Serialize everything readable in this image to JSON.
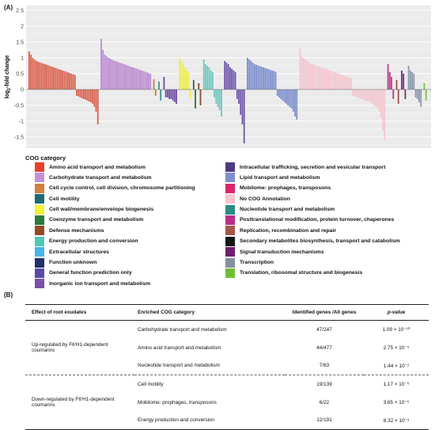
{
  "panel_a_label": "(A)",
  "panel_b_label": "(B)",
  "chart_data": {
    "type": "bar",
    "ylabel": "log2-fold change",
    "ylim": [
      -1.85,
      2.65
    ],
    "yticks": [
      -1.5,
      -1,
      -0.5,
      0,
      0.5,
      1,
      1.5,
      2,
      2.5
    ],
    "grid": true,
    "categories": [
      {
        "name": "Amino acid transport and metabolism",
        "color": "#d95f4b",
        "up": [
          1.2,
          1.1,
          1.0,
          0.95,
          0.9,
          0.88,
          0.86,
          0.84,
          0.82,
          0.8,
          0.78,
          0.76,
          0.74,
          0.72,
          0.7,
          0.68,
          0.66,
          0.64,
          0.62,
          0.6,
          0.58,
          0.56,
          0.54,
          0.52,
          0.5,
          0.48,
          0.46
        ],
        "down": [
          -0.2,
          -0.22,
          -0.25,
          -0.28,
          -0.3,
          -0.32,
          -0.35,
          -0.38,
          -0.4,
          -0.45,
          -0.55,
          -0.7,
          -1.1
        ]
      },
      {
        "name": "Carbohydrate transport and metabolism",
        "color": "#b98ad0",
        "up": [
          1.6,
          1.25,
          1.1,
          1.05,
          1.0,
          0.98,
          0.95,
          0.92,
          0.9,
          0.88,
          0.86,
          0.84,
          0.82,
          0.8,
          0.78,
          0.76,
          0.74,
          0.72,
          0.7,
          0.68,
          0.66,
          0.64,
          0.62,
          0.6,
          0.58,
          0.56,
          0.54,
          0.52,
          0.5
        ],
        "down": []
      },
      {
        "name": "Cell cycle control, cell division, chromosome partitioning",
        "color": "#c77a3a",
        "up": [
          0.32
        ],
        "down": [
          -0.2
        ]
      },
      {
        "name": "Nucleotide transport and metabolism",
        "color": "#3a8f8f",
        "up": [
          0.25
        ],
        "down": [
          -0.35
        ]
      },
      {
        "name": "Inorganic ion transport and metabolism",
        "color": "#6a4ca0",
        "up": [
          0.4
        ],
        "down": [
          -0.25,
          -0.25,
          -0.3,
          -0.3,
          -0.35,
          -0.4,
          -0.45
        ]
      },
      {
        "name": "Cell wall/membrane/envelope biogenesis",
        "color": "#eeee44",
        "up": [
          1.0,
          0.9,
          0.8,
          0.7,
          0.62,
          0.55
        ],
        "down": [
          -0.3
        ]
      },
      {
        "name": "Coenzyme transport and metabolism",
        "color": "#2f6a3a",
        "up": [
          0.3
        ],
        "down": [
          -0.6
        ]
      },
      {
        "name": "Defense mechanisms",
        "color": "#8b4a2b",
        "up": [
          0.2
        ],
        "down": [
          -0.5
        ]
      },
      {
        "name": "Energy production and conversion",
        "color": "#6fc7be",
        "up": [
          0.95,
          0.8,
          0.75,
          0.7,
          0.6,
          0.55
        ],
        "down": [
          -0.25,
          -0.45,
          -0.55,
          -0.65,
          -0.85
        ]
      },
      {
        "name": "General function prediction only",
        "color": "#6d54a8",
        "up": [
          0.9,
          0.85,
          0.8,
          0.7,
          0.65,
          0.6,
          0.55
        ],
        "down": [
          -0.3,
          -0.45,
          -0.8,
          -1.1,
          -1.7
        ]
      },
      {
        "name": "Lipid transport and metabolism",
        "color": "#7a8ccc",
        "up": [
          1.0,
          0.95,
          0.9,
          0.85,
          0.8,
          0.78,
          0.76,
          0.74,
          0.72,
          0.7,
          0.68,
          0.66,
          0.64,
          0.62,
          0.6,
          0.58,
          0.56
        ],
        "down": [
          -0.2,
          -0.25,
          -0.3,
          -0.35,
          -0.4,
          -0.45,
          -0.5,
          -0.55,
          -0.6,
          -0.7,
          -0.85,
          -0.95
        ]
      },
      {
        "name": "No COG Annotation",
        "color": "#f4c6cf",
        "up": [
          1.3,
          1.05,
          1.0,
          0.95,
          0.9,
          0.86,
          0.82,
          0.8,
          0.78,
          0.76,
          0.74,
          0.72,
          0.7,
          0.68,
          0.66,
          0.64,
          0.62,
          0.6,
          0.58,
          0.56,
          0.54,
          0.52,
          0.5,
          0.48,
          0.46,
          0.44,
          0.42,
          0.4,
          0.38,
          0.36
        ],
        "down": [
          -0.2,
          -0.22,
          -0.24,
          -0.26,
          -0.28,
          -0.3,
          -0.32,
          -0.34,
          -0.36,
          -0.38,
          -0.4,
          -0.45,
          -0.5,
          -0.55,
          -0.6,
          -0.7,
          -0.9,
          -1.3,
          -1.6
        ]
      },
      {
        "name": "Posttranslational modification, protein turnover, chaperones",
        "color": "#b83a8a",
        "up": [
          0.8,
          0.55,
          0.4
        ],
        "down": [
          -0.3
        ]
      },
      {
        "name": "Replication, recombination and repair",
        "color": "#a05048",
        "up": [
          0.3
        ],
        "down": [
          -0.45
        ]
      },
      {
        "name": "Signal transduction mechanisms",
        "color": "#7a2b7a",
        "up": [
          0.6,
          0.5
        ],
        "down": [
          -0.3
        ]
      },
      {
        "name": "Transcription",
        "color": "#8896aa",
        "up": [
          0.75,
          0.6,
          0.55,
          0.5
        ],
        "down": [
          -0.25,
          -0.3,
          -0.4,
          -0.55
        ]
      },
      {
        "name": "Translation, ribosomal structure and biogenesis",
        "color": "#7cc63e",
        "up": [
          0.2
        ],
        "down": [
          -0.35
        ]
      }
    ]
  },
  "legend": {
    "title": "COG category",
    "left": [
      {
        "label": "Amino acid transport and metabolism",
        "color": "#e8402a"
      },
      {
        "label": "Carbohydrate transport and metabolism",
        "color": "#c291d6"
      },
      {
        "label": "Cell cycle control, cell division, chromosome partitioning",
        "color": "#d08040"
      },
      {
        "label": "Cell motility",
        "color": "#1d6a73"
      },
      {
        "label": "Cell wall/membrane/envelope biogenesis",
        "color": "#f3f03a"
      },
      {
        "label": "Coenzyme transport and metabolism",
        "color": "#2c7a40"
      },
      {
        "label": "Defense mechanisms",
        "color": "#944a24"
      },
      {
        "label": "Energy production and conversion",
        "color": "#4fc7b8"
      },
      {
        "label": "Extracellular structures",
        "color": "#46b6ea"
      },
      {
        "label": "Function unknown",
        "color": "#23306a"
      },
      {
        "label": "General function prediction only",
        "color": "#5a4aa8"
      },
      {
        "label": "Inorganic ion transport and metabolism",
        "color": "#7a51a8"
      }
    ],
    "right": [
      {
        "label": "Intracellular trafficking, secretion and vesicular transport",
        "color": "#4e3a80"
      },
      {
        "label": "Lipid transport and metabolism",
        "color": "#7f8ed0"
      },
      {
        "label": "Mobilome: prophages, transposons",
        "color": "#d8266a"
      },
      {
        "label": "No COG Annotation",
        "color": "#f7c5cf"
      },
      {
        "label": "Nucleotide transport and metabolism",
        "color": "#2a8c88"
      },
      {
        "label": "Posttranslational modification, protein turnover, chaperones",
        "color": "#b82f88"
      },
      {
        "label": "Replication, recombination and repair",
        "color": "#a8564c"
      },
      {
        "label": "Secondary metabolites biosynthesis, transport and catabolism",
        "color": "#151515"
      },
      {
        "label": "Signal transduction mechanisms",
        "color": "#6e1f70"
      },
      {
        "label": "Transcription",
        "color": "#8690a3"
      },
      {
        "label": "Translation, ribosomal structure and biogenesis",
        "color": "#6fbf36"
      }
    ]
  },
  "table": {
    "headers": [
      "Effect of root exudates",
      "Enriched COG category",
      "Identified genes /All genes",
      "p-value"
    ],
    "groups": [
      {
        "effect": "Up-regulated by F6'H1-dependent coumarins",
        "rows": [
          {
            "category": "Carbohydrate transport and metabolism",
            "genes": "47/247",
            "pvalue": "1.09 × 10⁻¹⁰"
          },
          {
            "category": "Amino acid transport and metabolism",
            "genes": "44/477",
            "pvalue": "2.75 × 10⁻⁵"
          },
          {
            "category": "Nucleotide transport and metabolism",
            "genes": "7/63",
            "pvalue": "1.44 × 10⁻²"
          }
        ]
      },
      {
        "effect": "Down-regulated by F6'H1-dependent coumarins",
        "rows": [
          {
            "category": "Cell motility",
            "genes": "19/139",
            "pvalue": "1.17 × 10⁻⁶"
          },
          {
            "category": "Mobilome: prophages, transposons",
            "genes": "6/22",
            "pvalue": "3.65 × 10⁻⁶"
          },
          {
            "category": "Energy production and conversion",
            "genes": "12/191",
            "pvalue": "8.32 × 10⁻³"
          }
        ]
      }
    ]
  }
}
